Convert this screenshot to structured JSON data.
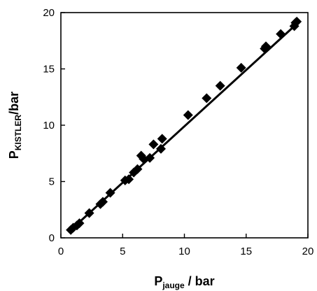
{
  "chart_data": {
    "type": "scatter",
    "title": "",
    "xlabel": {
      "main": "P",
      "sub": "jauge",
      "rest": " / bar"
    },
    "ylabel": {
      "main": "P",
      "sub": "KISTLER",
      "rest": "/bar"
    },
    "xlim": [
      0,
      20
    ],
    "ylim": [
      0,
      20
    ],
    "x_ticks": [
      0,
      5,
      10,
      15,
      20
    ],
    "y_ticks": [
      0,
      5,
      10,
      15,
      20
    ],
    "tick_labels_x": [
      "0",
      "5",
      "10",
      "15",
      "20"
    ],
    "tick_labels_y": [
      "0",
      "5",
      "10",
      "15",
      "20"
    ],
    "grid": false,
    "legend": "none",
    "marker": "diamond",
    "marker_color": "#000000",
    "points": [
      [
        0.8,
        0.7
      ],
      [
        1.0,
        0.9
      ],
      [
        1.3,
        1.1
      ],
      [
        1.5,
        1.3
      ],
      [
        2.3,
        2.2
      ],
      [
        3.2,
        3.0
      ],
      [
        3.4,
        3.2
      ],
      [
        4.0,
        4.0
      ],
      [
        5.2,
        5.1
      ],
      [
        5.5,
        5.2
      ],
      [
        5.9,
        5.8
      ],
      [
        6.2,
        6.1
      ],
      [
        6.5,
        7.3
      ],
      [
        6.7,
        7.0
      ],
      [
        7.2,
        7.1
      ],
      [
        7.5,
        8.3
      ],
      [
        8.1,
        7.9
      ],
      [
        8.2,
        8.8
      ],
      [
        10.3,
        10.9
      ],
      [
        11.8,
        12.4
      ],
      [
        12.9,
        13.5
      ],
      [
        14.6,
        15.1
      ],
      [
        16.5,
        16.8
      ],
      [
        16.6,
        17.0
      ],
      [
        17.8,
        18.1
      ],
      [
        18.9,
        18.8
      ],
      [
        19.0,
        19.1
      ],
      [
        19.1,
        19.2
      ]
    ],
    "fit_line": {
      "x": [
        0.7,
        19.1
      ],
      "y": [
        0.6,
        19.0
      ]
    }
  }
}
